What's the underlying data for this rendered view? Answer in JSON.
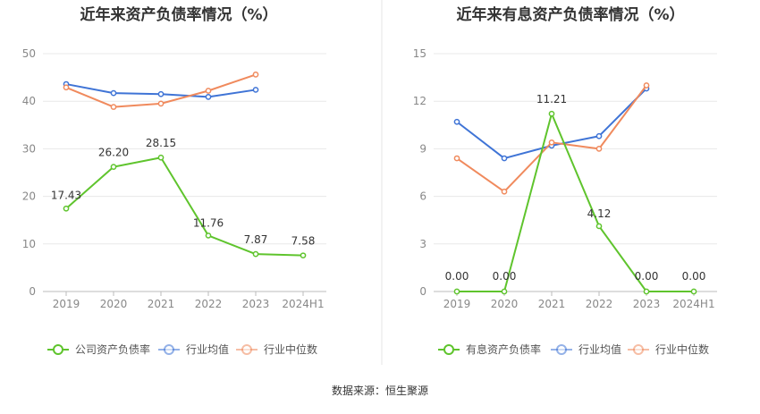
{
  "footer": {
    "source": "数据来源：恒生聚源"
  },
  "chart_data": [
    {
      "type": "line",
      "title": "近年来资产负债率情况（%）",
      "categories": [
        "2019",
        "2020",
        "2021",
        "2022",
        "2023",
        "2024H1"
      ],
      "ylim": [
        0,
        50
      ],
      "yticks": [
        0,
        10,
        20,
        30,
        40,
        50
      ],
      "grid": true,
      "legend_position": "bottom",
      "series": [
        {
          "name": "公司资产负债率",
          "color": "#5fc42d",
          "values": [
            17.43,
            26.2,
            28.15,
            11.76,
            7.87,
            7.58
          ],
          "labels": [
            "17.43",
            "26.20",
            "28.15",
            "11.76",
            "7.87",
            "7.58"
          ]
        },
        {
          "name": "行业均值",
          "color": "#3f74d6",
          "values": [
            43.6,
            41.7,
            41.5,
            40.9,
            42.4,
            null
          ]
        },
        {
          "name": "行业中位数",
          "color": "#f08a5d",
          "values": [
            42.9,
            38.8,
            39.5,
            42.2,
            45.6,
            null
          ]
        }
      ]
    },
    {
      "type": "line",
      "title": "近年来有息资产负债率情况（%）",
      "categories": [
        "2019",
        "2020",
        "2021",
        "2022",
        "2023",
        "2024H1"
      ],
      "ylim": [
        0,
        15
      ],
      "yticks": [
        0,
        3,
        6,
        9,
        12,
        15
      ],
      "grid": true,
      "legend_position": "bottom",
      "series": [
        {
          "name": "有息资产负债率",
          "color": "#5fc42d",
          "values": [
            0.0,
            0.0,
            11.21,
            4.12,
            0.0,
            0.0
          ],
          "labels": [
            "0.00",
            "0.00",
            "11.21",
            "4.12",
            "0.00",
            "0.00"
          ]
        },
        {
          "name": "行业均值",
          "color": "#3f74d6",
          "values": [
            10.7,
            8.4,
            9.2,
            9.8,
            12.8,
            null
          ]
        },
        {
          "name": "行业中位数",
          "color": "#f08a5d",
          "values": [
            8.4,
            6.3,
            9.4,
            9.0,
            13.0,
            null
          ]
        }
      ]
    }
  ]
}
